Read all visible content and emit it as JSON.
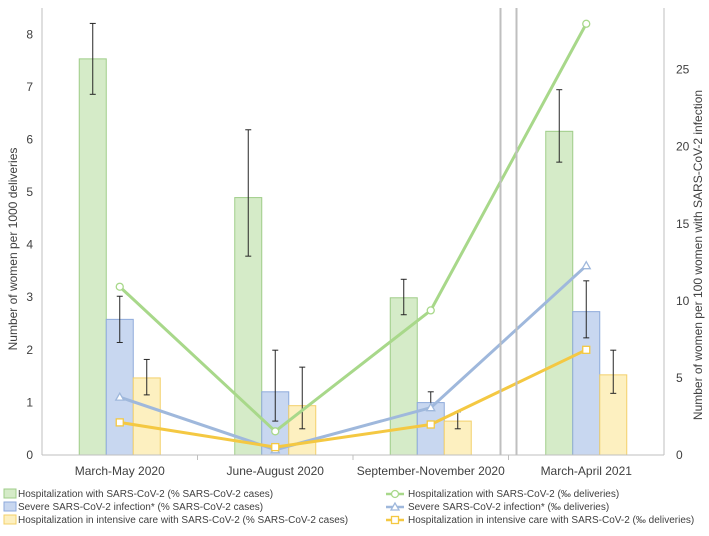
{
  "chart_data": {
    "type": "bar",
    "title": "",
    "categories": [
      "March-May 2020",
      "June-August 2020",
      "September-November 2020",
      "March-April 2021"
    ],
    "ylabel": "Number of women per 1000 deliveries",
    "ylabel_right": "Number of women per 100 women with SARS-CoV-2 infection",
    "ylim": [
      0,
      8.5
    ],
    "ylim_right": [
      0,
      29
    ],
    "yticks": [
      0,
      1,
      2,
      3,
      4,
      5,
      6,
      7,
      8
    ],
    "yticks_right": [
      0,
      5,
      10,
      15,
      20,
      25
    ],
    "gap_after_category": 2,
    "legend_position": "bottom",
    "bar_series": [
      {
        "name": "Hospitalization with SARS-CoV-2 (% SARS-CoV-2 cases)",
        "axis": "right",
        "values": [
          25.7,
          16.7,
          10.2,
          21.0
        ],
        "err_low": [
          23.4,
          12.9,
          9.1,
          19.0
        ],
        "err_high": [
          28.0,
          21.1,
          11.4,
          23.7
        ],
        "fill": "#d5ebc8",
        "stroke": "#9fcd88"
      },
      {
        "name": "Severe SARS-CoV-2 infection* (% SARS-CoV-2 cases)",
        "axis": "right",
        "values": [
          8.8,
          4.1,
          3.4,
          9.3
        ],
        "err_low": [
          7.3,
          2.2,
          2.9,
          7.6
        ],
        "err_high": [
          10.3,
          6.8,
          4.1,
          11.3
        ],
        "fill": "#c8d7f0",
        "stroke": "#8eaadb"
      },
      {
        "name": "Hospitalization in intensive care with SARS-CoV-2 (% SARS-CoV-2 cases)",
        "axis": "right",
        "values": [
          5.0,
          3.2,
          2.2,
          5.2
        ],
        "err_low": [
          3.9,
          1.7,
          1.7,
          4.0
        ],
        "err_high": [
          6.2,
          5.7,
          2.8,
          6.8
        ],
        "fill": "#fdf0c0",
        "stroke": "#f3d06a"
      }
    ],
    "line_series": [
      {
        "name": "Hospitalization with SARS-CoV-2 (‰ deliveries)",
        "axis": "left",
        "values": [
          3.2,
          0.45,
          2.75,
          8.2
        ],
        "color": "#a8d88a",
        "marker": "circle"
      },
      {
        "name": "Severe SARS-CoV-2 infection* (‰ deliveries)",
        "axis": "left",
        "values": [
          1.1,
          0.1,
          0.9,
          3.6
        ],
        "color": "#9fb8dc",
        "marker": "triangle"
      },
      {
        "name": "Hospitalization in intensive care with SARS-CoV-2 (‰ deliveries)",
        "axis": "left",
        "values": [
          0.62,
          0.15,
          0.58,
          2.0
        ],
        "color": "#f4c842",
        "marker": "square"
      }
    ]
  }
}
